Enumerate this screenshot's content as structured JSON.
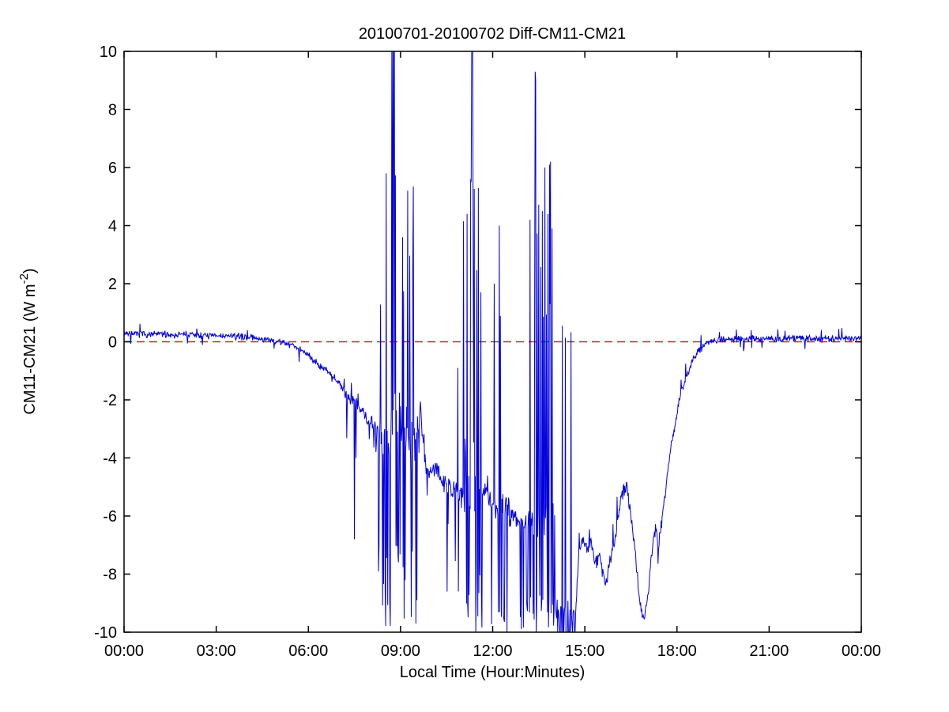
{
  "page": {
    "background": "#ffffff"
  },
  "chart_data": {
    "type": "line",
    "title": "20100701-20100702 Diff-CM11-CM21",
    "xlabel": "Local Time (Hour:Minutes)",
    "ylabel_main": "CM11-CM21 (W m",
    "ylabel_sup": "-2",
    "ylabel_close": ")",
    "xlim": [
      0,
      24
    ],
    "ylim": [
      -10,
      10
    ],
    "x_ticks": [
      {
        "v": 0,
        "label": "00:00"
      },
      {
        "v": 3,
        "label": "03:00"
      },
      {
        "v": 6,
        "label": "06:00"
      },
      {
        "v": 9,
        "label": "09:00"
      },
      {
        "v": 12,
        "label": "12:00"
      },
      {
        "v": 15,
        "label": "15:00"
      },
      {
        "v": 18,
        "label": "18:00"
      },
      {
        "v": 21,
        "label": "21:00"
      },
      {
        "v": 24,
        "label": "00:00"
      }
    ],
    "y_ticks": [
      {
        "v": -10,
        "label": "-10"
      },
      {
        "v": -8,
        "label": "-8"
      },
      {
        "v": -6,
        "label": "-6"
      },
      {
        "v": -4,
        "label": "-4"
      },
      {
        "v": -2,
        "label": "-2"
      },
      {
        "v": 0,
        "label": "0"
      },
      {
        "v": 2,
        "label": "2"
      },
      {
        "v": 4,
        "label": "4"
      },
      {
        "v": 6,
        "label": "6"
      },
      {
        "v": 8,
        "label": "8"
      },
      {
        "v": 10,
        "label": "10"
      }
    ],
    "grid": false,
    "legend": null,
    "line_color": "#0000dd",
    "frame_color": "#000000",
    "zero_line": {
      "value": 0,
      "color": "#cc2222",
      "dash": [
        10,
        6
      ]
    },
    "sample_step_minutes": 1,
    "seed": 7,
    "envelope_keypoints": [
      [
        0,
        0.3
      ],
      [
        0.4,
        0.27
      ],
      [
        0.8,
        0.25
      ],
      [
        1.2,
        0.27
      ],
      [
        1.6,
        0.24
      ],
      [
        2.0,
        0.26
      ],
      [
        2.4,
        0.22
      ],
      [
        2.8,
        0.21
      ],
      [
        3.2,
        0.2
      ],
      [
        3.6,
        0.19
      ],
      [
        4.0,
        0.16
      ],
      [
        4.3,
        0.12
      ],
      [
        4.6,
        0.07
      ],
      [
        4.9,
        0.02
      ],
      [
        5.2,
        -0.03
      ],
      [
        5.5,
        -0.12
      ],
      [
        5.8,
        -0.3
      ],
      [
        6.1,
        -0.55
      ],
      [
        6.4,
        -0.85
      ],
      [
        6.7,
        -1.05
      ],
      [
        6.9,
        -1.3
      ],
      [
        7.1,
        -1.55
      ],
      [
        7.3,
        -2.0
      ],
      [
        7.42,
        -1.85
      ],
      [
        7.55,
        -2.15
      ],
      [
        7.7,
        -2.35
      ],
      [
        7.85,
        -2.55
      ],
      [
        8.0,
        -2.75
      ],
      [
        8.28,
        -3.1
      ],
      [
        9.62,
        -1.9
      ],
      [
        9.7,
        -3.0
      ],
      [
        9.78,
        -4.0
      ],
      [
        9.85,
        -4.3
      ],
      [
        10.0,
        -4.5
      ],
      [
        10.15,
        -4.35
      ],
      [
        10.35,
        -4.8
      ],
      [
        10.55,
        -5.0
      ],
      [
        10.75,
        -5.15
      ],
      [
        10.95,
        -5.35
      ],
      [
        11.15,
        -5.5
      ],
      [
        11.66,
        -5.2
      ],
      [
        11.8,
        -5.05
      ],
      [
        11.95,
        -5.5
      ],
      [
        12.1,
        -5.3
      ],
      [
        12.3,
        -5.75
      ],
      [
        12.55,
        -6.0
      ],
      [
        12.7,
        -5.95
      ],
      [
        12.8,
        -6.15
      ],
      [
        14.68,
        -9.9
      ],
      [
        14.8,
        -7.3
      ],
      [
        14.95,
        -6.85
      ],
      [
        15.1,
        -7.1
      ],
      [
        15.2,
        -6.95
      ],
      [
        15.35,
        -7.55
      ],
      [
        15.5,
        -7.35
      ],
      [
        15.65,
        -8.35
      ],
      [
        15.8,
        -7.7
      ],
      [
        15.95,
        -6.9
      ],
      [
        16.1,
        -5.9
      ],
      [
        16.25,
        -5.15
      ],
      [
        16.35,
        -4.85
      ],
      [
        16.5,
        -5.9
      ],
      [
        16.65,
        -7.3
      ],
      [
        16.8,
        -9.1
      ],
      [
        16.95,
        -9.6
      ],
      [
        17.1,
        -8.2
      ],
      [
        17.2,
        -7.0
      ],
      [
        17.3,
        -6.35
      ],
      [
        17.4,
        -7.15
      ],
      [
        17.5,
        -6.2
      ],
      [
        17.65,
        -4.9
      ],
      [
        17.8,
        -3.6
      ],
      [
        17.95,
        -2.75
      ],
      [
        18.1,
        -1.95
      ],
      [
        18.3,
        -1.2
      ],
      [
        18.5,
        -0.65
      ],
      [
        18.7,
        -0.3
      ],
      [
        18.9,
        -0.1
      ],
      [
        19.1,
        0.02
      ],
      [
        19.4,
        0.08
      ],
      [
        20,
        0.1
      ],
      [
        21,
        0.1
      ],
      [
        22,
        0.12
      ],
      [
        23,
        0.1
      ],
      [
        24,
        0.13
      ]
    ],
    "noise_segments": [
      [
        0,
        4.3,
        0.09
      ],
      [
        4.3,
        5.2,
        0.08
      ],
      [
        5.2,
        7.2,
        0.1
      ],
      [
        7.2,
        8.28,
        0.22
      ],
      [
        9.62,
        11.15,
        0.28
      ],
      [
        11.66,
        11.95,
        0.33
      ],
      [
        12.55,
        12.8,
        0.28
      ],
      [
        14.68,
        17.5,
        0.2
      ],
      [
        17.5,
        18.8,
        0.13
      ],
      [
        18.8,
        24,
        0.09
      ]
    ],
    "bursts": {
      "p": 0.03,
      "mult": 3.0
    },
    "down_bursts": [
      {
        "t0": 9.62,
        "t1": 11.15,
        "p": 0.045,
        "lo": -8.6,
        "hi": -6.2
      },
      {
        "t0": 7.2,
        "t1": 8.28,
        "p": 0.05,
        "lo": -4.2,
        "hi": -3.2
      }
    ],
    "clusters": [
      {
        "t0": 8.28,
        "t1": 9.62,
        "base": -3.0,
        "noise": 1.5,
        "p_down": 0.22,
        "down": [
          -10,
          -7.0
        ],
        "p_up": 0.2,
        "up": [
          1.2,
          5.8
        ]
      },
      {
        "t0": 11.05,
        "t1": 11.66,
        "base": -4.6,
        "noise": 1.4,
        "p_down": 0.3,
        "down": [
          -10,
          -8.0
        ],
        "p_up": 0.24,
        "up": [
          0.8,
          5.6
        ]
      },
      {
        "t0": 11.95,
        "t1": 12.55,
        "base": -5.6,
        "noise": 0.5,
        "p_down": 0.22,
        "down": [
          -10,
          -9.2
        ],
        "p_up": 0.05,
        "up": [
          0.3,
          2.0
        ]
      },
      {
        "t0": 12.8,
        "t1": 13.08,
        "base": -6.2,
        "noise": 0.45,
        "p_down": 0.25,
        "down": [
          -10,
          -9.2
        ],
        "p_up": 0.0,
        "up": [
          0,
          0
        ]
      },
      {
        "t0": 13.08,
        "t1": 14.05,
        "base": -6.1,
        "noise": 1.1,
        "p_down": 0.34,
        "down": [
          -10,
          -8.6
        ],
        "p_up": 0.12,
        "up": [
          0.8,
          6.0
        ]
      },
      {
        "t0": 14.05,
        "t1": 14.68,
        "base": -9.3,
        "noise": 0.7,
        "p_down": 0.58,
        "down": [
          -10,
          -10
        ],
        "p_up": 0.02,
        "up": [
          0.1,
          0.5
        ]
      }
    ],
    "spikes": [
      [
        7.5,
        -6.8
      ],
      [
        8.53,
        5.8
      ],
      [
        8.72,
        10
      ],
      [
        8.75,
        10
      ],
      [
        8.78,
        10
      ],
      [
        8.8,
        10
      ],
      [
        9.07,
        3.6
      ],
      [
        9.23,
        5.2
      ],
      [
        9.42,
        5.35
      ],
      [
        10.52,
        -8.6
      ],
      [
        10.87,
        -0.9
      ],
      [
        10.89,
        -8.6
      ],
      [
        11.28,
        5.6
      ],
      [
        11.3,
        5.5
      ],
      [
        11.32,
        10
      ],
      [
        11.33,
        10
      ],
      [
        11.35,
        10
      ],
      [
        12.05,
        2.0
      ],
      [
        12.22,
        4.0
      ],
      [
        13.22,
        4.2
      ],
      [
        13.38,
        9.3
      ],
      [
        13.4,
        9.0
      ],
      [
        13.62,
        4.5
      ],
      [
        13.7,
        6.0
      ],
      [
        13.85,
        6.1
      ],
      [
        13.88,
        6.2
      ],
      [
        13.93,
        3.9
      ],
      [
        14.27,
        0.55
      ],
      [
        19.93,
        0.42
      ],
      [
        21.52,
        0.38
      ],
      [
        22.7,
        0.4
      ]
    ]
  }
}
